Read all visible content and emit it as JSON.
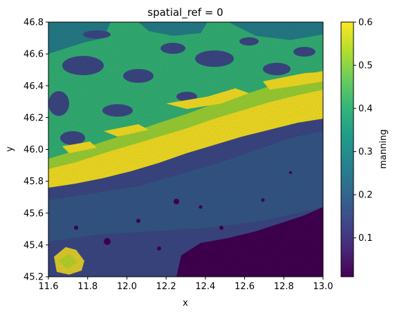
{
  "chart_data": {
    "type": "heatmap",
    "title": "spatial_ref = 0",
    "xlabel": "x",
    "ylabel": "y",
    "xlim": [
      11.6,
      13.0
    ],
    "ylim": [
      45.2,
      46.8
    ],
    "x_ticks": [
      "11.6",
      "11.8",
      "12.0",
      "12.2",
      "12.4",
      "12.6",
      "12.8",
      "13.0"
    ],
    "y_ticks": [
      "45.2",
      "45.4",
      "45.6",
      "45.8",
      "46.0",
      "46.2",
      "46.4",
      "46.6",
      "46.8"
    ],
    "colorbar": {
      "label": "manning",
      "colormap": "viridis",
      "range": [
        0.01,
        0.6
      ],
      "ticks": [
        "0.1",
        "0.2",
        "0.3",
        "0.4",
        "0.5",
        "0.6"
      ]
    },
    "legend": "colorbar-right",
    "grid": false,
    "colors": {
      "viridis": [
        "#440154",
        "#482878",
        "#3e4a89",
        "#31688e",
        "#26828e",
        "#1f9e89",
        "#35b779",
        "#6dcd59",
        "#b4de2c",
        "#fde725"
      ]
    }
  }
}
